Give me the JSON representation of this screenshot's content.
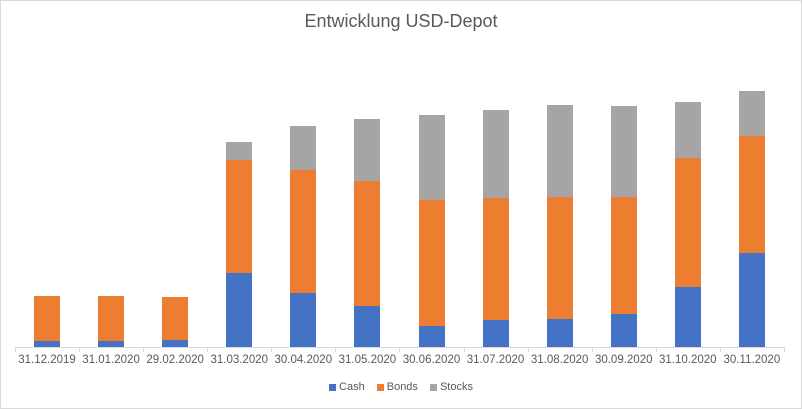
{
  "chart_data": {
    "type": "bar",
    "stacked": true,
    "title": "Entwicklung USD-Depot",
    "xlabel": "",
    "ylabel": "",
    "y_axis_visible": false,
    "grid": false,
    "legend_position": "bottom",
    "units_note": "No y-axis shown; values are relative bar heights in pixels",
    "categories": [
      "31.12.2019",
      "31.01.2020",
      "29.02.2020",
      "31.03.2020",
      "30.04.2020",
      "31.05.2020",
      "30.06.2020",
      "31.07.2020",
      "31.08.2020",
      "30.09.2020",
      "31.10.2020",
      "30.11.2020"
    ],
    "series": [
      {
        "name": "Cash",
        "color": "#4472c4",
        "values": [
          6,
          6,
          7,
          74,
          54,
          41,
          21,
          27,
          28,
          33,
          60,
          94
        ]
      },
      {
        "name": "Bonds",
        "color": "#ed7d31",
        "values": [
          45,
          45,
          43,
          113,
          123,
          125,
          126,
          122,
          122,
          117,
          129,
          117
        ]
      },
      {
        "name": "Stocks",
        "color": "#a5a5a5",
        "values": [
          0,
          0,
          0,
          18,
          44,
          62,
          85,
          88,
          92,
          91,
          56,
          45
        ]
      }
    ]
  }
}
